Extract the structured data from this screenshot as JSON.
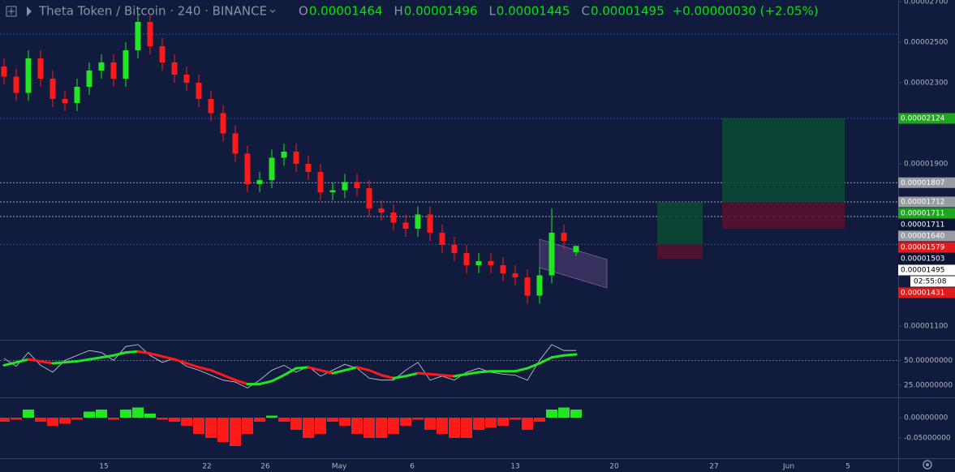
{
  "chart_data": {
    "type": "candlestick",
    "title": "Theta Token / Bitcoin · 240 · BINANCE",
    "ohlc_header": {
      "labels": [
        "O",
        "H",
        "L",
        "C"
      ],
      "values": [
        "0.00001464",
        "0.00001496",
        "0.00001445",
        "0.00001495"
      ],
      "change": "+0.00000030 (+2.05%)"
    },
    "open": [
      2.38e-05,
      2.33e-05,
      2.25e-05,
      2.42e-05,
      2.32e-05,
      2.22e-05,
      2.2e-05,
      2.28e-05,
      2.36e-05,
      2.4e-05,
      2.32e-05,
      2.46e-05,
      2.6e-05,
      2.48e-05,
      2.4e-05,
      2.34e-05,
      2.3e-05,
      2.22e-05,
      2.15e-05,
      2.05e-05,
      1.95e-05,
      1.8e-05,
      1.82e-05,
      1.93e-05,
      1.96e-05,
      1.9e-05,
      1.86e-05,
      1.76e-05,
      1.77e-05,
      1.81e-05,
      1.78e-05,
      1.68e-05,
      1.66e-05,
      1.61e-05,
      1.58e-05,
      1.65e-05,
      1.56e-05,
      1.5e-05,
      1.46e-05,
      1.4e-05,
      1.42e-05,
      1.4e-05,
      1.36e-05,
      1.34e-05,
      1.25e-05,
      1.35e-05,
      1.56e-05,
      1.464e-05
    ],
    "high": [
      2.42e-05,
      2.37e-05,
      2.46e-05,
      2.46e-05,
      2.36e-05,
      2.26e-05,
      2.32e-05,
      2.4e-05,
      2.44e-05,
      2.44e-05,
      2.5e-05,
      2.64e-05,
      2.64e-05,
      2.52e-05,
      2.44e-05,
      2.38e-05,
      2.34e-05,
      2.26e-05,
      2.19e-05,
      2.09e-05,
      1.99e-05,
      1.86e-05,
      1.97e-05,
      2e-05,
      2e-05,
      1.94e-05,
      1.9e-05,
      1.81e-05,
      1.85e-05,
      1.85e-05,
      1.82e-05,
      1.72e-05,
      1.7e-05,
      1.65e-05,
      1.69e-05,
      1.69e-05,
      1.6e-05,
      1.54e-05,
      1.5e-05,
      1.46e-05,
      1.46e-05,
      1.44e-05,
      1.4e-05,
      1.38e-05,
      1.39e-05,
      1.68e-05,
      1.6e-05,
      1.496e-05
    ],
    "low": [
      2.29e-05,
      2.21e-05,
      2.21e-05,
      2.28e-05,
      2.18e-05,
      2.16e-05,
      2.16e-05,
      2.24e-05,
      2.32e-05,
      2.28e-05,
      2.28e-05,
      2.42e-05,
      2.44e-05,
      2.36e-05,
      2.3e-05,
      2.26e-05,
      2.18e-05,
      2.11e-05,
      2.01e-05,
      1.91e-05,
      1.76e-05,
      1.76e-05,
      1.78e-05,
      1.89e-05,
      1.86e-05,
      1.82e-05,
      1.72e-05,
      1.72e-05,
      1.73e-05,
      1.74e-05,
      1.64e-05,
      1.62e-05,
      1.57e-05,
      1.54e-05,
      1.54e-05,
      1.52e-05,
      1.46e-05,
      1.42e-05,
      1.36e-05,
      1.36e-05,
      1.36e-05,
      1.32e-05,
      1.3e-05,
      1.21e-05,
      1.21e-05,
      1.31e-05,
      1.48e-05,
      1.445e-05
    ],
    "close": [
      2.33e-05,
      2.25e-05,
      2.42e-05,
      2.32e-05,
      2.22e-05,
      2.2e-05,
      2.28e-05,
      2.36e-05,
      2.4e-05,
      2.32e-05,
      2.46e-05,
      2.6e-05,
      2.48e-05,
      2.4e-05,
      2.34e-05,
      2.3e-05,
      2.22e-05,
      2.15e-05,
      2.05e-05,
      1.95e-05,
      1.8e-05,
      1.82e-05,
      1.93e-05,
      1.96e-05,
      1.9e-05,
      1.86e-05,
      1.76e-05,
      1.77e-05,
      1.81e-05,
      1.78e-05,
      1.68e-05,
      1.66e-05,
      1.61e-05,
      1.58e-05,
      1.65e-05,
      1.56e-05,
      1.5e-05,
      1.46e-05,
      1.4e-05,
      1.42e-05,
      1.4e-05,
      1.36e-05,
      1.34e-05,
      1.25e-05,
      1.35e-05,
      1.56e-05,
      1.52e-05,
      1.495e-05
    ],
    "up_color": "#22e622",
    "down_color": "#ff1a1a",
    "ylim": [
      1.036e-05,
      2.708e-05
    ],
    "yticks": [
      {
        "value": 2.7e-05,
        "label": "0.00002700"
      },
      {
        "value": 2.5e-05,
        "label": "0.00002500"
      },
      {
        "value": 2.3e-05,
        "label": "0.00002300"
      },
      {
        "value": 1.9e-05,
        "label": "0.00001900"
      },
      {
        "value": 1.1e-05,
        "label": "0.00001100"
      }
    ],
    "xlabels": [
      "15",
      "22",
      "26",
      "May",
      "6",
      "13",
      "20",
      "27",
      "Jun",
      "5"
    ],
    "levels": [
      {
        "value": 2.54e-05,
        "color": "#2962ff"
      },
      {
        "value": 2.124e-05,
        "color": "#2962ff"
      },
      {
        "value": 1.807e-05,
        "color": "#cfd2dc"
      },
      {
        "value": 1.712e-05,
        "color": "#cfd2dc"
      },
      {
        "value": 1.64e-05,
        "color": "#cfd2dc"
      },
      {
        "value": 1.503e-05,
        "color": "#2962ff"
      }
    ],
    "positions": [
      {
        "entry": 1.712e-05,
        "target": 2.124e-05,
        "stop": 1.579e-05
      },
      {
        "entry": 1.503e-05,
        "target": 1.711e-05,
        "stop": 1.431e-05
      }
    ],
    "price_labels": [
      {
        "value": 2.124e-05,
        "label": "0.00002124",
        "bg": "#1fa51f",
        "fg": "#ffffff"
      },
      {
        "value": 1.807e-05,
        "label": "0.00001807",
        "bg": "#9a9ca3",
        "fg": "#ffffff"
      },
      {
        "value": 1.712e-05,
        "label": "0.00001712",
        "bg": "#9a9ca3",
        "fg": "#ffffff"
      },
      {
        "value": 1.711e-05,
        "label": "0.00001711",
        "bg": "#1fa51f",
        "fg": "#ffffff"
      },
      {
        "value": 1.711e-05,
        "label": "0.00001711",
        "bg": "#0b1533",
        "fg": "#ffffff"
      },
      {
        "value": 1.64e-05,
        "label": "0.00001640",
        "bg": "#9a9ca3",
        "fg": "#ffffff"
      },
      {
        "value": 1.579e-05,
        "label": "0.00001579",
        "bg": "#e01b1b",
        "fg": "#ffffff"
      },
      {
        "value": 1.503e-05,
        "label": "0.00001503",
        "bg": "#0b1533",
        "fg": "#ffffff"
      },
      {
        "value": 1.495e-05,
        "label": "0.00001495",
        "bg": "#ffffff",
        "fg": "#000000"
      },
      {
        "value": 1.431e-05,
        "label": "0.00001431",
        "bg": "#e01b1b",
        "fg": "#ffffff"
      }
    ],
    "countdown": "02:55:08",
    "indicators": [
      {
        "type": "line",
        "ylim": [
          12.5,
          70
        ],
        "yticks": [
          {
            "value": 50,
            "label": "50.00000000"
          },
          {
            "value": 25,
            "label": "25.00000000"
          }
        ],
        "series": [
          {
            "color": "#d0d3dc",
            "values": [
              52,
              44,
              58,
              45,
              38,
              50,
              55,
              60,
              58,
              50,
              64,
              66,
              55,
              48,
              52,
              44,
              40,
              35,
              30,
              28,
              22,
              30,
              40,
              45,
              38,
              44,
              34,
              40,
              46,
              42,
              32,
              30,
              30,
              40,
              48,
              30,
              34,
              30,
              38,
              42,
              38,
              36,
              35,
              30,
              50,
              66,
              60,
              60
            ]
          },
          {
            "color": "#22e622",
            "down_color": "#ff1a1a",
            "values": [
              45,
              48,
              51,
              49,
              47,
              48,
              49,
              51,
              53,
              55,
              58,
              59,
              57,
              54,
              51,
              47,
              43,
              40,
              35,
              30,
              26,
              26,
              29,
              35,
              42,
              43,
              40,
              37,
              40,
              43,
              40,
              35,
              32,
              34,
              37,
              36,
              35,
              34,
              36,
              38,
              39,
              39,
              39,
              42,
              47,
              53,
              55,
              56
            ]
          }
        ]
      },
      {
        "type": "histogram",
        "ylim": [
          -0.1,
          0.05
        ],
        "yticks": [
          {
            "value": 0,
            "label": "0.00000000"
          },
          {
            "value": -0.05,
            "label": "-0.05000000"
          }
        ],
        "up_color": "#22e622",
        "down_color": "#ff1a1a",
        "values": [
          -0.01,
          -0.005,
          0.02,
          -0.01,
          -0.02,
          -0.015,
          -0.005,
          0.015,
          0.02,
          -0.005,
          0.02,
          0.025,
          0.01,
          -0.005,
          -0.01,
          -0.02,
          -0.04,
          -0.05,
          -0.06,
          -0.07,
          -0.04,
          -0.01,
          0.005,
          -0.01,
          -0.03,
          -0.05,
          -0.04,
          -0.01,
          -0.02,
          -0.04,
          -0.05,
          -0.05,
          -0.04,
          -0.02,
          -0.005,
          -0.03,
          -0.04,
          -0.05,
          -0.05,
          -0.03,
          -0.025,
          -0.02,
          -0.005,
          -0.03,
          -0.01,
          0.02,
          0.025,
          0.02
        ]
      }
    ]
  }
}
